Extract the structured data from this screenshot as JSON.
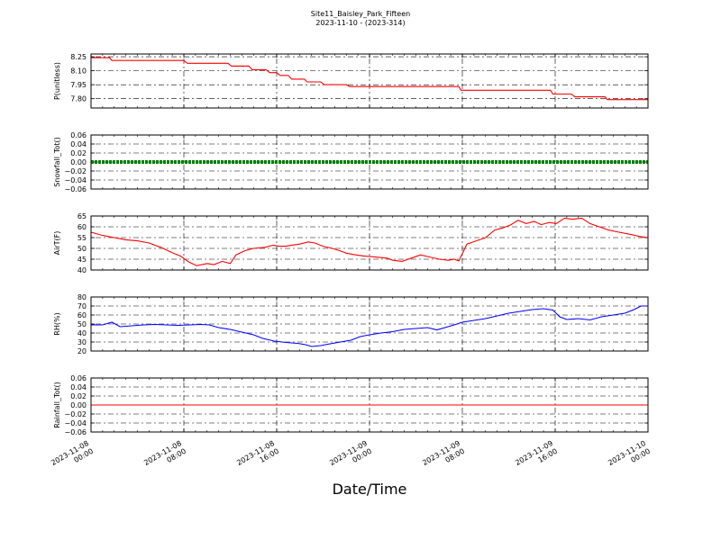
{
  "chart_data": {
    "type": "line",
    "title": "Site11_Baisley_Park_Fifteen",
    "subtitle": "2023-11-10 - (2023-314)",
    "xlabel": "Date/Time",
    "x_range": [
      "2023-11-08 00:00",
      "2023-11-10 00:00"
    ],
    "x_ticks": [
      "2023-11-08\n00:00",
      "2023-11-08\n08:00",
      "2023-11-08\n16:00",
      "2023-11-09\n00:00",
      "2023-11-09\n08:00",
      "2023-11-09\n16:00",
      "2023-11-10\n00:00"
    ],
    "grid": true,
    "panels": [
      {
        "ylabel": "P(unitless)",
        "ylim": [
          7.7,
          8.28
        ],
        "yticks": [
          "8.25",
          "8.10",
          "7.95",
          "7.80"
        ],
        "ytick_values": [
          8.25,
          8.1,
          7.95,
          7.8
        ],
        "color": "#ff0000",
        "series": [
          {
            "h": 0.0,
            "v": 8.24
          },
          {
            "h": 1.6,
            "v": 8.24
          },
          {
            "h": 1.8,
            "v": 8.21
          },
          {
            "h": 8.0,
            "v": 8.21
          },
          {
            "h": 8.3,
            "v": 8.18
          },
          {
            "h": 11.8,
            "v": 8.18
          },
          {
            "h": 12.1,
            "v": 8.15
          },
          {
            "h": 13.6,
            "v": 8.15
          },
          {
            "h": 13.9,
            "v": 8.11
          },
          {
            "h": 15.1,
            "v": 8.11
          },
          {
            "h": 15.4,
            "v": 8.08
          },
          {
            "h": 16.0,
            "v": 8.08
          },
          {
            "h": 16.3,
            "v": 8.05
          },
          {
            "h": 17.0,
            "v": 8.05
          },
          {
            "h": 17.3,
            "v": 8.01
          },
          {
            "h": 18.4,
            "v": 8.01
          },
          {
            "h": 18.6,
            "v": 7.98
          },
          {
            "h": 19.8,
            "v": 7.98
          },
          {
            "h": 20.1,
            "v": 7.95
          },
          {
            "h": 22.0,
            "v": 7.95
          },
          {
            "h": 22.3,
            "v": 7.93
          },
          {
            "h": 31.7,
            "v": 7.93
          },
          {
            "h": 31.9,
            "v": 7.89
          },
          {
            "h": 39.6,
            "v": 7.89
          },
          {
            "h": 39.8,
            "v": 7.85
          },
          {
            "h": 41.4,
            "v": 7.85
          },
          {
            "h": 41.7,
            "v": 7.82
          },
          {
            "h": 44.3,
            "v": 7.82
          },
          {
            "h": 44.5,
            "v": 7.79
          },
          {
            "h": 48.0,
            "v": 7.79
          }
        ]
      },
      {
        "ylabel": "Snowfall_Tot()",
        "ylim": [
          -0.06,
          0.06
        ],
        "yticks": [
          "0.06",
          "0.04",
          "0.02",
          "0.00",
          "−0.02",
          "−0.04",
          "−0.06"
        ],
        "ytick_values": [
          0.06,
          0.04,
          0.02,
          0.0,
          -0.02,
          -0.04,
          -0.06
        ],
        "color": "#008000",
        "constant": 0.0,
        "marker": "dots"
      },
      {
        "ylabel": "AirT(F)",
        "ylim": [
          40,
          65
        ],
        "yticks": [
          "65",
          "60",
          "55",
          "50",
          "45",
          "40"
        ],
        "ytick_values": [
          65,
          60,
          55,
          50,
          45,
          40
        ],
        "color": "#ff0000",
        "series": [
          {
            "h": 0.0,
            "v": 57.5
          },
          {
            "h": 1.0,
            "v": 56.0
          },
          {
            "h": 2.0,
            "v": 55.0
          },
          {
            "h": 3.0,
            "v": 54.0
          },
          {
            "h": 4.0,
            "v": 53.5
          },
          {
            "h": 5.0,
            "v": 52.5
          },
          {
            "h": 6.0,
            "v": 50.5
          },
          {
            "h": 7.0,
            "v": 48.0
          },
          {
            "h": 7.7,
            "v": 46.5
          },
          {
            "h": 8.4,
            "v": 43.8
          },
          {
            "h": 9.1,
            "v": 42.0
          },
          {
            "h": 10.0,
            "v": 43.0
          },
          {
            "h": 10.6,
            "v": 42.5
          },
          {
            "h": 11.3,
            "v": 44.0
          },
          {
            "h": 12.0,
            "v": 43.0
          },
          {
            "h": 12.5,
            "v": 47.0
          },
          {
            "h": 13.3,
            "v": 49.0
          },
          {
            "h": 14.0,
            "v": 50.0
          },
          {
            "h": 15.0,
            "v": 50.5
          },
          {
            "h": 15.7,
            "v": 51.5
          },
          {
            "h": 16.2,
            "v": 51.0
          },
          {
            "h": 16.8,
            "v": 51.0
          },
          {
            "h": 17.3,
            "v": 51.5
          },
          {
            "h": 18.0,
            "v": 52.0
          },
          {
            "h": 18.7,
            "v": 53.0
          },
          {
            "h": 19.3,
            "v": 52.5
          },
          {
            "h": 20.0,
            "v": 51.0
          },
          {
            "h": 20.8,
            "v": 50.0
          },
          {
            "h": 21.4,
            "v": 49.0
          },
          {
            "h": 22.0,
            "v": 47.8
          },
          {
            "h": 22.8,
            "v": 47.0
          },
          {
            "h": 23.5,
            "v": 46.5
          },
          {
            "h": 24.5,
            "v": 46.0
          },
          {
            "h": 25.5,
            "v": 45.5
          },
          {
            "h": 26.0,
            "v": 44.5
          },
          {
            "h": 26.8,
            "v": 44.0
          },
          {
            "h": 27.6,
            "v": 45.5
          },
          {
            "h": 28.4,
            "v": 47.0
          },
          {
            "h": 29.2,
            "v": 46.0
          },
          {
            "h": 30.0,
            "v": 45.0
          },
          {
            "h": 30.8,
            "v": 44.5
          },
          {
            "h": 31.3,
            "v": 45.0
          },
          {
            "h": 31.7,
            "v": 44.2
          },
          {
            "h": 32.4,
            "v": 52.0
          },
          {
            "h": 33.2,
            "v": 53.5
          },
          {
            "h": 34.0,
            "v": 55.0
          },
          {
            "h": 34.8,
            "v": 58.5
          },
          {
            "h": 35.5,
            "v": 59.5
          },
          {
            "h": 36.2,
            "v": 61.0
          },
          {
            "h": 36.8,
            "v": 63.0
          },
          {
            "h": 37.5,
            "v": 61.5
          },
          {
            "h": 38.2,
            "v": 62.5
          },
          {
            "h": 38.8,
            "v": 61.0
          },
          {
            "h": 39.5,
            "v": 62.0
          },
          {
            "h": 40.1,
            "v": 61.5
          },
          {
            "h": 40.8,
            "v": 64.0
          },
          {
            "h": 41.5,
            "v": 63.5
          },
          {
            "h": 42.3,
            "v": 64.0
          },
          {
            "h": 43.0,
            "v": 61.5
          },
          {
            "h": 43.8,
            "v": 60.0
          },
          {
            "h": 44.6,
            "v": 58.5
          },
          {
            "h": 45.5,
            "v": 57.5
          },
          {
            "h": 46.5,
            "v": 56.5
          },
          {
            "h": 47.3,
            "v": 55.5
          },
          {
            "h": 48.0,
            "v": 55.0
          }
        ]
      },
      {
        "ylabel": "RH(%)",
        "ylim": [
          20,
          80
        ],
        "yticks": [
          "80",
          "70",
          "60",
          "50",
          "40",
          "30",
          "20"
        ],
        "ytick_values": [
          80,
          70,
          60,
          50,
          40,
          30,
          20
        ],
        "color": "#0000ff",
        "series": [
          {
            "h": 0.0,
            "v": 49.0
          },
          {
            "h": 1.0,
            "v": 49.0
          },
          {
            "h": 1.8,
            "v": 52.0
          },
          {
            "h": 2.5,
            "v": 47.0
          },
          {
            "h": 3.5,
            "v": 48.0
          },
          {
            "h": 4.5,
            "v": 49.0
          },
          {
            "h": 5.5,
            "v": 49.5
          },
          {
            "h": 6.5,
            "v": 49.0
          },
          {
            "h": 7.5,
            "v": 48.5
          },
          {
            "h": 8.5,
            "v": 49.0
          },
          {
            "h": 9.5,
            "v": 49.5
          },
          {
            "h": 10.2,
            "v": 49.0
          },
          {
            "h": 11.0,
            "v": 46.0
          },
          {
            "h": 12.0,
            "v": 44.0
          },
          {
            "h": 13.0,
            "v": 41.0
          },
          {
            "h": 14.0,
            "v": 38.0
          },
          {
            "h": 14.8,
            "v": 34.0
          },
          {
            "h": 15.8,
            "v": 31.0
          },
          {
            "h": 16.8,
            "v": 29.5
          },
          {
            "h": 17.8,
            "v": 28.5
          },
          {
            "h": 18.5,
            "v": 27.0
          },
          {
            "h": 19.0,
            "v": 25.0
          },
          {
            "h": 19.8,
            "v": 26.0
          },
          {
            "h": 20.6,
            "v": 28.0
          },
          {
            "h": 21.5,
            "v": 30.0
          },
          {
            "h": 22.4,
            "v": 32.0
          },
          {
            "h": 23.2,
            "v": 36.0
          },
          {
            "h": 24.0,
            "v": 38.0
          },
          {
            "h": 25.0,
            "v": 40.0
          },
          {
            "h": 26.0,
            "v": 41.5
          },
          {
            "h": 27.0,
            "v": 44.0
          },
          {
            "h": 28.0,
            "v": 45.0
          },
          {
            "h": 29.0,
            "v": 46.0
          },
          {
            "h": 29.8,
            "v": 43.5
          },
          {
            "h": 30.5,
            "v": 46.0
          },
          {
            "h": 31.3,
            "v": 49.0
          },
          {
            "h": 32.0,
            "v": 52.0
          },
          {
            "h": 33.0,
            "v": 54.0
          },
          {
            "h": 34.0,
            "v": 56.0
          },
          {
            "h": 35.0,
            "v": 59.0
          },
          {
            "h": 36.0,
            "v": 62.0
          },
          {
            "h": 37.0,
            "v": 64.0
          },
          {
            "h": 38.0,
            "v": 66.0
          },
          {
            "h": 39.0,
            "v": 67.0
          },
          {
            "h": 39.8,
            "v": 65.5
          },
          {
            "h": 40.4,
            "v": 58.0
          },
          {
            "h": 41.0,
            "v": 55.0
          },
          {
            "h": 42.0,
            "v": 56.0
          },
          {
            "h": 43.0,
            "v": 54.5
          },
          {
            "h": 44.0,
            "v": 58.0
          },
          {
            "h": 45.0,
            "v": 60.0
          },
          {
            "h": 46.0,
            "v": 62.0
          },
          {
            "h": 46.8,
            "v": 66.0
          },
          {
            "h": 47.4,
            "v": 70.0
          },
          {
            "h": 48.0,
            "v": 70.0
          }
        ]
      },
      {
        "ylabel": "Rainfall_Tot()",
        "ylim": [
          -0.06,
          0.06
        ],
        "yticks": [
          "0.06",
          "0.04",
          "0.02",
          "0.00",
          "−0.02",
          "−0.04",
          "−0.06"
        ],
        "ytick_values": [
          0.06,
          0.04,
          0.02,
          0.0,
          -0.02,
          -0.04,
          -0.06
        ],
        "color": "#ff0000",
        "constant": 0.0
      }
    ]
  }
}
